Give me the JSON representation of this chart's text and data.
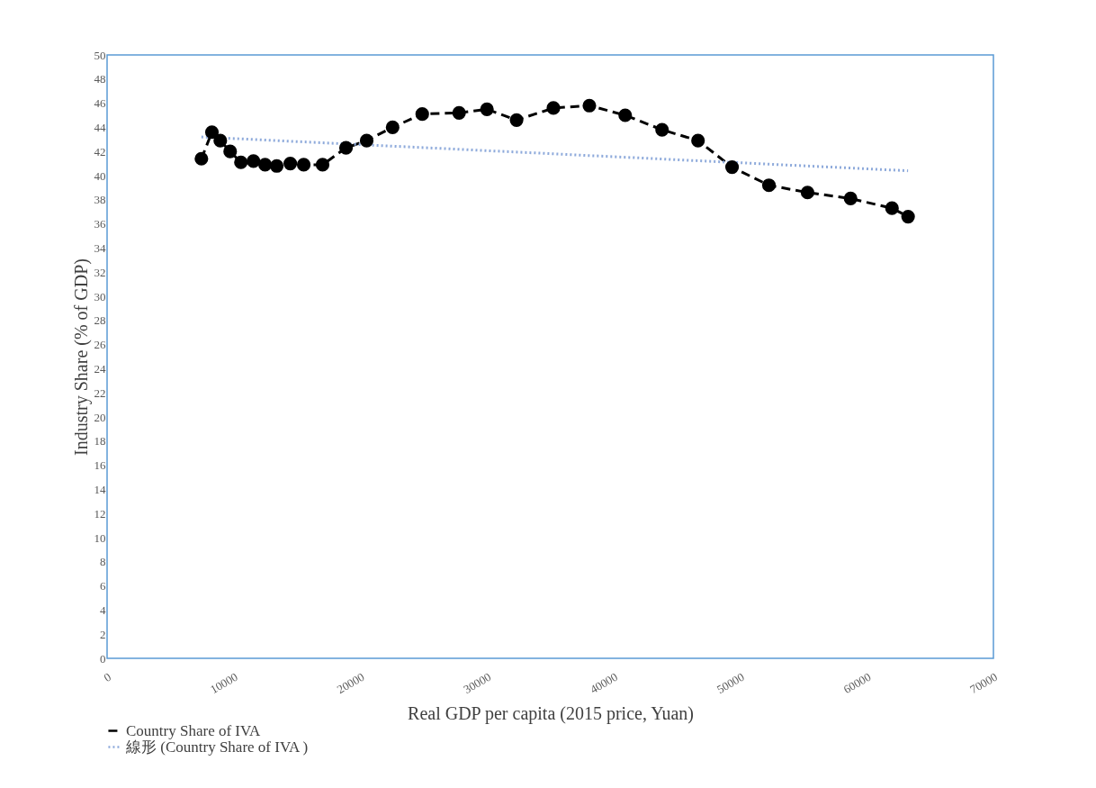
{
  "chart_data": {
    "type": "line",
    "xlabel": "Real GDP per capita (2015 price, Yuan)",
    "ylabel": "Industry Share (% of GDP)",
    "xlim": [
      0,
      70000
    ],
    "xticks": [
      0,
      10000,
      20000,
      30000,
      40000,
      50000,
      60000,
      70000
    ],
    "ylim": [
      0,
      50
    ],
    "yticks": [
      0,
      2,
      4,
      6,
      8,
      10,
      12,
      14,
      16,
      18,
      20,
      22,
      24,
      26,
      28,
      30,
      32,
      34,
      36,
      38,
      40,
      42,
      44,
      46,
      48,
      50
    ],
    "grid": false,
    "legend": "bottom",
    "series": [
      {
        "name": "Country Share of IVA",
        "color": "#000000",
        "line_style": "dashed",
        "marker": "circle",
        "x": [
          7450,
          8280,
          8940,
          9720,
          10570,
          11560,
          12480,
          13400,
          14470,
          15530,
          17020,
          18870,
          20500,
          22550,
          24890,
          27800,
          30000,
          32340,
          35250,
          38090,
          40920,
          43830,
          46670,
          49360,
          52270,
          55320,
          58720,
          61990,
          63260
        ],
        "values": [
          41.4,
          43.6,
          42.9,
          42.0,
          41.1,
          41.2,
          40.9,
          40.8,
          41.0,
          40.9,
          40.9,
          42.3,
          42.9,
          44.0,
          45.1,
          45.2,
          45.5,
          44.6,
          45.6,
          45.8,
          45.0,
          43.8,
          42.9,
          40.7,
          39.2,
          38.6,
          38.1,
          37.3,
          36.6
        ]
      },
      {
        "name": "線形 (Country Share of IVA )",
        "color": "#8eaadb",
        "line_style": "dotted",
        "marker": "none",
        "x": [
          7450,
          63260
        ],
        "values": [
          43.2,
          40.4
        ]
      }
    ]
  }
}
